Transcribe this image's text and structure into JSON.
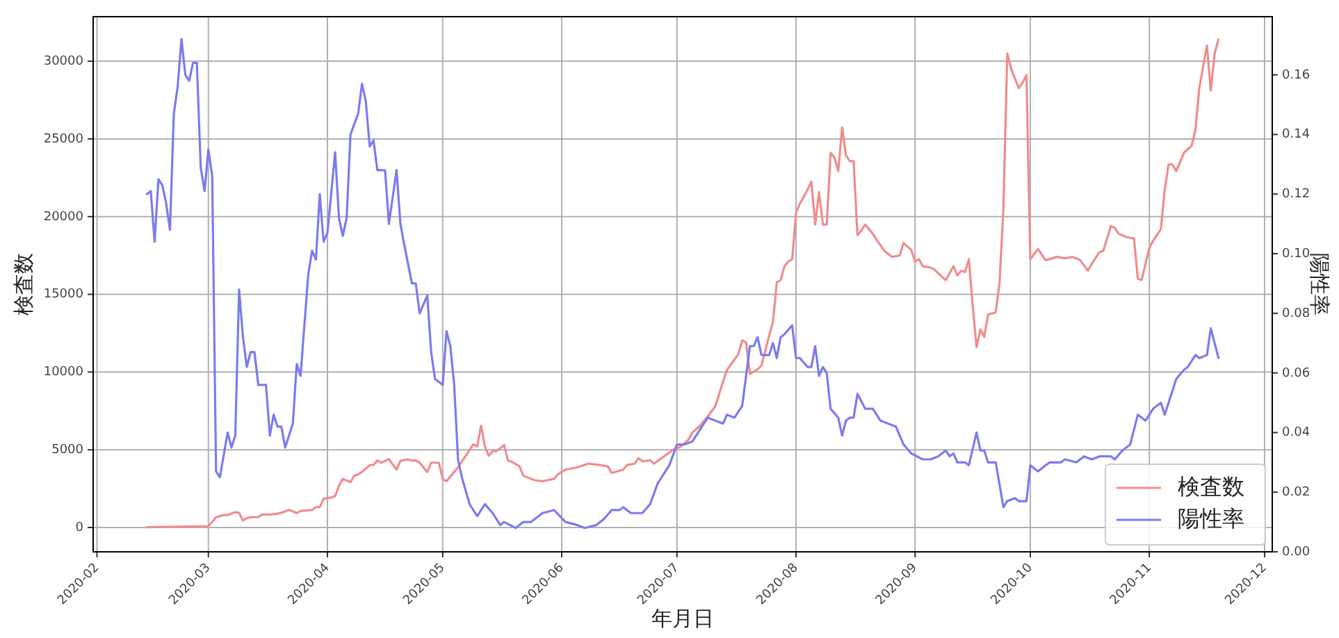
{
  "chart_data": {
    "type": "line",
    "xlabel": "年月日",
    "ylabel": "検査数",
    "y2label": "陽性率",
    "xlim": [
      "2020-01-31",
      "2020-12-03"
    ],
    "xticks": [
      "2020-02",
      "2020-03",
      "2020-04",
      "2020-05",
      "2020-06",
      "2020-07",
      "2020-08",
      "2020-09",
      "2020-10",
      "2020-11",
      "2020-12"
    ],
    "ylim": [
      -1565,
      32865
    ],
    "yticks": [
      0,
      5000,
      10000,
      15000,
      20000,
      25000,
      30000
    ],
    "y2lim": [
      0,
      0.1795
    ],
    "y2ticks": [
      {
        "value": 0,
        "label": "0.00"
      },
      {
        "value": 0.02,
        "label": "0.02"
      },
      {
        "value": 0.04,
        "label": "0.04"
      },
      {
        "value": 0.06,
        "label": "0.06"
      },
      {
        "value": 0.08,
        "label": "0.08"
      },
      {
        "value": 0.1,
        "label": "0.10"
      },
      {
        "value": 0.12,
        "label": "0.12"
      },
      {
        "value": 0.14,
        "label": "0.14"
      },
      {
        "value": 0.16,
        "label": "0.16"
      }
    ],
    "grid": true,
    "legend": "bottom right",
    "series": [
      {
        "name": "検査数",
        "color": "#f08c8c",
        "axis": "y",
        "x": [
          "2020-02-14",
          "2020-03-01",
          "2020-03-03",
          "2020-03-05",
          "2020-03-06",
          "2020-03-08",
          "2020-03-09",
          "2020-03-10",
          "2020-03-11",
          "2020-03-12",
          "2020-03-14",
          "2020-03-15",
          "2020-03-17",
          "2020-03-19",
          "2020-03-20",
          "2020-03-22",
          "2020-03-23",
          "2020-03-24",
          "2020-03-25",
          "2020-03-27",
          "2020-03-28",
          "2020-03-29",
          "2020-03-30",
          "2020-03-31",
          "2020-04-02",
          "2020-04-03",
          "2020-04-04",
          "2020-04-05",
          "2020-04-07",
          "2020-04-08",
          "2020-04-09",
          "2020-04-10",
          "2020-04-12",
          "2020-04-13",
          "2020-04-14",
          "2020-04-15",
          "2020-04-17",
          "2020-04-19",
          "2020-04-20",
          "2020-04-22",
          "2020-04-23",
          "2020-04-24",
          "2020-04-25",
          "2020-04-27",
          "2020-04-28",
          "2020-04-30",
          "2020-05-01",
          "2020-05-02",
          "2020-05-05",
          "2020-05-07",
          "2020-05-09",
          "2020-05-10",
          "2020-05-11",
          "2020-05-12",
          "2020-05-13",
          "2020-05-14",
          "2020-05-15",
          "2020-05-17",
          "2020-05-18",
          "2020-05-19",
          "2020-05-21",
          "2020-05-22",
          "2020-05-25",
          "2020-05-27",
          "2020-05-30",
          "2020-05-31",
          "2020-06-02",
          "2020-06-05",
          "2020-06-08",
          "2020-06-11",
          "2020-06-13",
          "2020-06-14",
          "2020-06-17",
          "2020-06-18",
          "2020-06-20",
          "2020-06-21",
          "2020-06-22",
          "2020-06-24",
          "2020-06-25",
          "2020-06-27",
          "2020-06-30",
          "2020-07-02",
          "2020-07-04",
          "2020-07-05",
          "2020-07-07",
          "2020-07-09",
          "2020-07-11",
          "2020-07-13",
          "2020-07-14",
          "2020-07-17",
          "2020-07-18",
          "2020-07-19",
          "2020-07-20",
          "2020-07-22",
          "2020-07-23",
          "2020-07-25",
          "2020-07-26",
          "2020-07-27",
          "2020-07-28",
          "2020-07-29",
          "2020-07-30",
          "2020-07-31",
          "2020-08-01",
          "2020-08-02",
          "2020-08-04",
          "2020-08-05",
          "2020-08-06",
          "2020-08-07",
          "2020-08-08",
          "2020-08-09",
          "2020-08-10",
          "2020-08-11",
          "2020-08-12",
          "2020-08-13",
          "2020-08-14",
          "2020-08-15",
          "2020-08-16",
          "2020-08-17",
          "2020-08-18",
          "2020-08-19",
          "2020-08-21",
          "2020-08-22",
          "2020-08-24",
          "2020-08-26",
          "2020-08-28",
          "2020-08-29",
          "2020-08-31",
          "2020-09-01",
          "2020-09-02",
          "2020-09-03",
          "2020-09-05",
          "2020-09-06",
          "2020-09-08",
          "2020-09-09",
          "2020-09-11",
          "2020-09-12",
          "2020-09-13",
          "2020-09-14",
          "2020-09-15",
          "2020-09-16",
          "2020-09-17",
          "2020-09-18",
          "2020-09-19",
          "2020-09-20",
          "2020-09-22",
          "2020-09-23",
          "2020-09-24",
          "2020-09-25",
          "2020-09-26",
          "2020-09-28",
          "2020-09-29",
          "2020-09-30",
          "2020-10-01",
          "2020-10-03",
          "2020-10-05",
          "2020-10-08",
          "2020-10-10",
          "2020-10-12",
          "2020-10-14",
          "2020-10-16",
          "2020-10-17",
          "2020-10-19",
          "2020-10-20",
          "2020-10-22",
          "2020-10-23",
          "2020-10-24",
          "2020-10-26",
          "2020-10-28",
          "2020-10-29",
          "2020-10-30",
          "2020-11-01",
          "2020-11-02",
          "2020-11-04",
          "2020-11-05",
          "2020-11-06",
          "2020-11-07",
          "2020-11-08",
          "2020-11-09",
          "2020-11-10",
          "2020-11-12",
          "2020-11-13",
          "2020-11-14",
          "2020-11-16",
          "2020-11-17",
          "2020-11-18",
          "2020-11-19"
        ],
        "values": [
          20,
          90,
          660,
          800,
          800,
          980,
          950,
          450,
          600,
          660,
          680,
          830,
          830,
          890,
          950,
          1130,
          1040,
          920,
          1070,
          1100,
          1130,
          1310,
          1310,
          1850,
          1930,
          2020,
          2680,
          3130,
          2920,
          3330,
          3420,
          3570,
          4020,
          4020,
          4320,
          4170,
          4400,
          3720,
          4290,
          4380,
          4290,
          4320,
          4170,
          3570,
          4170,
          4170,
          3130,
          2980,
          3870,
          4610,
          5360,
          5210,
          6550,
          5210,
          4610,
          4910,
          4910,
          5300,
          4320,
          4230,
          3930,
          3330,
          3040,
          2980,
          3130,
          3420,
          3720,
          3870,
          4110,
          4020,
          3930,
          3510,
          3720,
          4020,
          4110,
          4460,
          4260,
          4320,
          4110,
          4460,
          5000,
          5210,
          5650,
          6100,
          6550,
          7140,
          7800,
          9370,
          10120,
          11160,
          12050,
          11900,
          9880,
          10180,
          10420,
          12350,
          13240,
          15770,
          15920,
          16810,
          17110,
          17260,
          20240,
          20830,
          21730,
          22260,
          19490,
          21580,
          19490,
          19490,
          24110,
          23810,
          22920,
          25740,
          23960,
          23570,
          23570,
          18810,
          19110,
          19490,
          18900,
          18510,
          17800,
          17410,
          17500,
          18300,
          17860,
          17110,
          17260,
          16810,
          16730,
          16610,
          16130,
          15920,
          16810,
          16220,
          16520,
          16430,
          17260,
          14290,
          11610,
          12740,
          12260,
          13690,
          13840,
          15770,
          20530,
          30500,
          29520,
          28270,
          28630,
          29100,
          17260,
          17920,
          17200,
          17410,
          17320,
          17410,
          17200,
          16520,
          16960,
          17710,
          17800,
          19400,
          19280,
          18900,
          18690,
          18600,
          16010,
          15920,
          18000,
          18450,
          19200,
          21730,
          23360,
          23360,
          22920,
          23510,
          24110,
          24550,
          25590,
          28270,
          31010,
          28120,
          30500,
          31400
        ]
      },
      {
        "name": "陽性率",
        "color": "#7b7bef",
        "axis": "y2",
        "x": [
          "2020-02-14",
          "2020-02-15",
          "2020-02-16",
          "2020-02-17",
          "2020-02-18",
          "2020-02-19",
          "2020-02-20",
          "2020-02-21",
          "2020-02-22",
          "2020-02-23",
          "2020-02-24",
          "2020-02-25",
          "2020-02-26",
          "2020-02-27",
          "2020-02-28",
          "2020-02-29",
          "2020-03-01",
          "2020-03-02",
          "2020-03-03",
          "2020-03-04",
          "2020-03-06",
          "2020-03-07",
          "2020-03-08",
          "2020-03-09",
          "2020-03-10",
          "2020-03-11",
          "2020-03-12",
          "2020-03-13",
          "2020-03-14",
          "2020-03-16",
          "2020-03-17",
          "2020-03-18",
          "2020-03-19",
          "2020-03-20",
          "2020-03-21",
          "2020-03-23",
          "2020-03-24",
          "2020-03-25",
          "2020-03-27",
          "2020-03-28",
          "2020-03-29",
          "2020-03-30",
          "2020-03-31",
          "2020-04-01",
          "2020-04-03",
          "2020-04-04",
          "2020-04-05",
          "2020-04-06",
          "2020-04-07",
          "2020-04-09",
          "2020-04-10",
          "2020-04-11",
          "2020-04-12",
          "2020-04-13",
          "2020-04-14",
          "2020-04-16",
          "2020-04-17",
          "2020-04-19",
          "2020-04-20",
          "2020-04-21",
          "2020-04-23",
          "2020-04-24",
          "2020-04-25",
          "2020-04-27",
          "2020-04-28",
          "2020-04-29",
          "2020-05-01",
          "2020-05-02",
          "2020-05-03",
          "2020-05-04",
          "2020-05-05",
          "2020-05-06",
          "2020-05-08",
          "2020-05-10",
          "2020-05-12",
          "2020-05-14",
          "2020-05-16",
          "2020-05-17",
          "2020-05-20",
          "2020-05-22",
          "2020-05-24",
          "2020-05-27",
          "2020-05-30",
          "2020-06-02",
          "2020-06-05",
          "2020-06-07",
          "2020-06-10",
          "2020-06-12",
          "2020-06-14",
          "2020-06-16",
          "2020-06-17",
          "2020-06-19",
          "2020-06-22",
          "2020-06-24",
          "2020-06-26",
          "2020-06-29",
          "2020-07-01",
          "2020-07-03",
          "2020-07-05",
          "2020-07-07",
          "2020-07-09",
          "2020-07-11",
          "2020-07-13",
          "2020-07-14",
          "2020-07-16",
          "2020-07-18",
          "2020-07-20",
          "2020-07-21",
          "2020-07-22",
          "2020-07-23",
          "2020-07-25",
          "2020-07-26",
          "2020-07-27",
          "2020-07-28",
          "2020-07-29",
          "2020-07-31",
          "2020-08-01",
          "2020-08-02",
          "2020-08-04",
          "2020-08-05",
          "2020-08-06",
          "2020-08-07",
          "2020-08-08",
          "2020-08-09",
          "2020-08-10",
          "2020-08-12",
          "2020-08-13",
          "2020-08-14",
          "2020-08-15",
          "2020-08-16",
          "2020-08-17",
          "2020-08-19",
          "2020-08-21",
          "2020-08-23",
          "2020-08-25",
          "2020-08-27",
          "2020-08-29",
          "2020-08-31",
          "2020-09-03",
          "2020-09-05",
          "2020-09-07",
          "2020-09-09",
          "2020-09-10",
          "2020-09-11",
          "2020-09-12",
          "2020-09-14",
          "2020-09-15",
          "2020-09-17",
          "2020-09-18",
          "2020-09-19",
          "2020-09-20",
          "2020-09-22",
          "2020-09-24",
          "2020-09-25",
          "2020-09-27",
          "2020-09-28",
          "2020-09-30",
          "2020-10-01",
          "2020-10-03",
          "2020-10-06",
          "2020-10-09",
          "2020-10-10",
          "2020-10-13",
          "2020-10-15",
          "2020-10-17",
          "2020-10-19",
          "2020-10-22",
          "2020-10-23",
          "2020-10-25",
          "2020-10-27",
          "2020-10-29",
          "2020-10-31",
          "2020-11-02",
          "2020-11-04",
          "2020-11-05",
          "2020-11-08",
          "2020-11-10",
          "2020-11-11",
          "2020-11-13",
          "2020-11-14",
          "2020-11-16",
          "2020-11-17",
          "2020-11-19"
        ],
        "values": [
          0.12,
          0.121,
          0.104,
          0.125,
          0.123,
          0.117,
          0.108,
          0.147,
          0.156,
          0.172,
          0.16,
          0.158,
          0.164,
          0.164,
          0.129,
          0.121,
          0.135,
          0.126,
          0.027,
          0.025,
          0.04,
          0.035,
          0.039,
          0.088,
          0.072,
          0.062,
          0.067,
          0.067,
          0.056,
          0.056,
          0.039,
          0.046,
          0.042,
          0.042,
          0.035,
          0.043,
          0.063,
          0.059,
          0.093,
          0.101,
          0.098,
          0.12,
          0.104,
          0.107,
          0.134,
          0.112,
          0.106,
          0.112,
          0.14,
          0.147,
          0.157,
          0.151,
          0.136,
          0.138,
          0.128,
          0.128,
          0.11,
          0.128,
          0.11,
          0.103,
          0.09,
          0.09,
          0.08,
          0.086,
          0.067,
          0.058,
          0.056,
          0.074,
          0.069,
          0.056,
          0.031,
          0.025,
          0.016,
          0.012,
          0.016,
          0.013,
          0.009,
          0.01,
          0.008,
          0.01,
          0.01,
          0.013,
          0.014,
          0.01,
          0.009,
          0.008,
          0.009,
          0.011,
          0.014,
          0.014,
          0.015,
          0.013,
          0.013,
          0.016,
          0.023,
          0.029,
          0.036,
          0.036,
          0.037,
          0.041,
          0.045,
          0.044,
          0.043,
          0.046,
          0.045,
          0.049,
          0.069,
          0.069,
          0.072,
          0.066,
          0.066,
          0.07,
          0.065,
          0.072,
          0.073,
          0.076,
          0.065,
          0.065,
          0.062,
          0.062,
          0.069,
          0.059,
          0.062,
          0.06,
          0.048,
          0.045,
          0.039,
          0.044,
          0.045,
          0.045,
          0.053,
          0.048,
          0.048,
          0.044,
          0.043,
          0.042,
          0.036,
          0.033,
          0.031,
          0.031,
          0.032,
          0.034,
          0.032,
          0.033,
          0.03,
          0.03,
          0.029,
          0.04,
          0.034,
          0.034,
          0.03,
          0.03,
          0.015,
          0.017,
          0.018,
          0.017,
          0.017,
          0.029,
          0.027,
          0.03,
          0.03,
          0.031,
          0.03,
          0.032,
          0.031,
          0.032,
          0.032,
          0.031,
          0.034,
          0.036,
          0.046,
          0.044,
          0.048,
          0.05,
          0.046,
          0.058,
          0.061,
          0.062,
          0.066,
          0.065,
          0.066,
          0.075,
          0.065
        ]
      }
    ]
  }
}
